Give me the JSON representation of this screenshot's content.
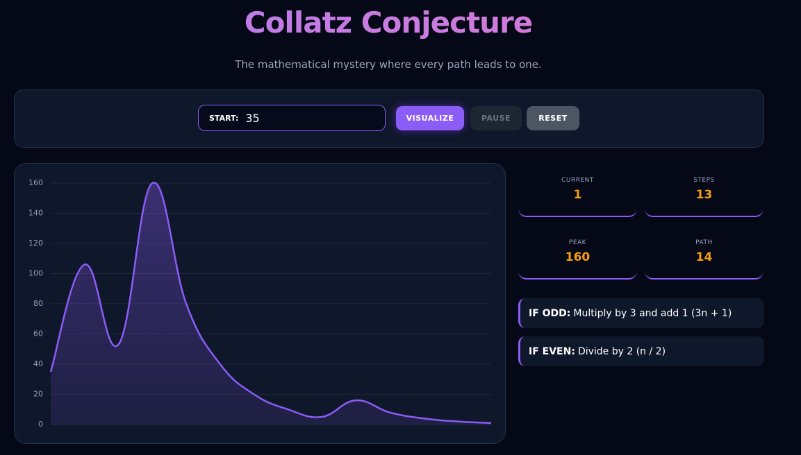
{
  "header": {
    "title": "Collatz Conjecture",
    "subtitle": "The mathematical mystery where every path leads to one."
  },
  "controls": {
    "start_label": "START:",
    "start_value": "35",
    "buttons": [
      "VISUALIZE",
      "PAUSE",
      "RESET"
    ]
  },
  "stats": [
    {
      "label": "CURRENT",
      "value": 1
    },
    {
      "label": "STEPS",
      "value": 13
    },
    {
      "label": "PEAK",
      "value": 160
    },
    {
      "label": "PATH",
      "value": 14
    }
  ],
  "rules": [
    {
      "label": "IF ODD:",
      "text": "Multiply by 3 and add 1 (3n + 1)"
    },
    {
      "label": "IF EVEN:",
      "text": "Divide by 2 (n / 2)"
    }
  ],
  "chart_data": {
    "type": "line",
    "categories": [
      null,
      null,
      null,
      null,
      null,
      null,
      null,
      null,
      null,
      null,
      null,
      null,
      null,
      null
    ],
    "series": [
      {
        "color": "#8b5cf6",
        "values": [
          35,
          106,
          53,
          160,
          80,
          40,
          20,
          10,
          5,
          16,
          8,
          4,
          2,
          1
        ]
      }
    ],
    "ylim": [
      0,
      160
    ],
    "yticks": [
      0,
      20,
      40,
      60,
      80,
      100,
      120,
      140,
      160
    ],
    "grid": true
  }
}
